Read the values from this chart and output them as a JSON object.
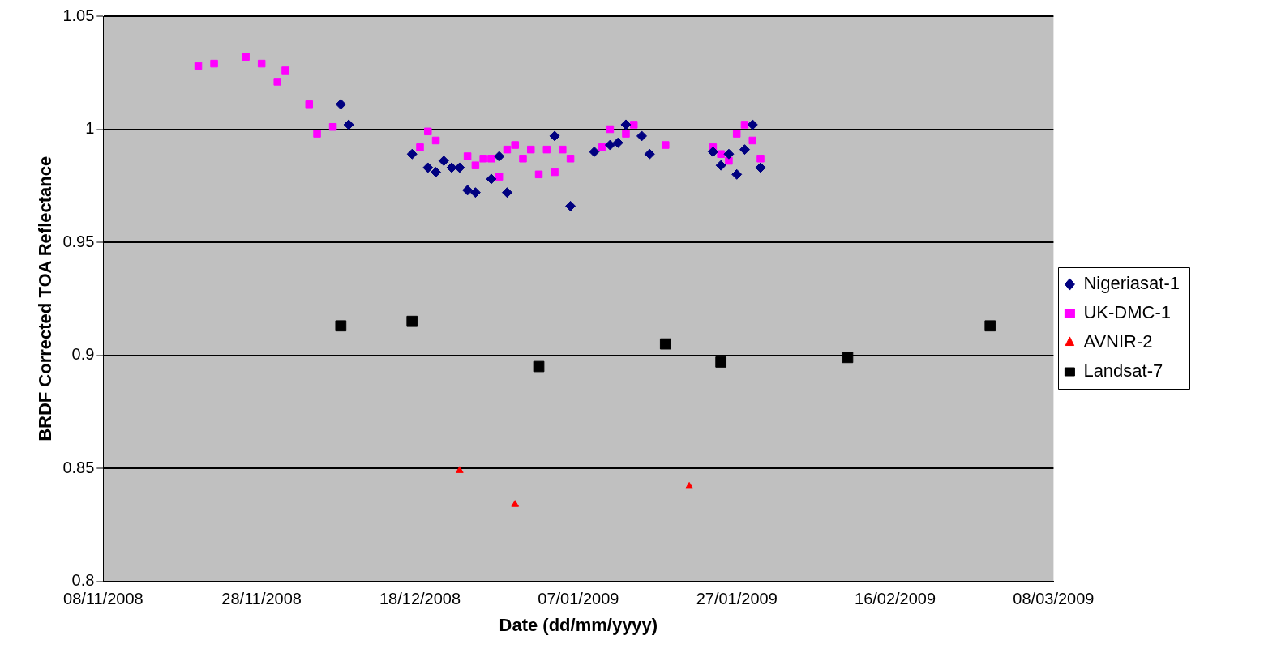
{
  "chart_data": {
    "type": "scatter",
    "xlabel": "Date (dd/mm/yyyy)",
    "ylabel": "BRDF Corrected TOA Reflectance",
    "xlim": [
      "2008-11-08",
      "2009-03-08"
    ],
    "xticks": [
      {
        "value": "2008-11-08",
        "label": "08/11/2008"
      },
      {
        "value": "2008-11-28",
        "label": "28/11/2008"
      },
      {
        "value": "2008-12-18",
        "label": "18/12/2008"
      },
      {
        "value": "2009-01-07",
        "label": "07/01/2009"
      },
      {
        "value": "2009-01-27",
        "label": "27/01/2009"
      },
      {
        "value": "2009-02-16",
        "label": "16/02/2009"
      },
      {
        "value": "2009-03-08",
        "label": "08/03/2009"
      }
    ],
    "ylim": [
      0.8,
      1.05
    ],
    "yticks": [
      0.8,
      0.85,
      0.9,
      0.95,
      1,
      1.05
    ],
    "grid": "y",
    "legend": "right",
    "series": [
      {
        "name": "Nigeriasat-1",
        "color": "#000080",
        "marker": "diamond",
        "x": [
          "2008-12-08",
          "2008-12-09",
          "2008-12-17",
          "2008-12-19",
          "2008-12-20",
          "2008-12-21",
          "2008-12-22",
          "2008-12-23",
          "2008-12-24",
          "2008-12-25",
          "2008-12-27",
          "2008-12-28",
          "2008-12-29",
          "2009-01-04",
          "2009-01-06",
          "2009-01-09",
          "2009-01-11",
          "2009-01-12",
          "2009-01-13",
          "2009-01-15",
          "2009-01-16",
          "2009-01-24",
          "2009-01-25",
          "2009-01-26",
          "2009-01-27",
          "2009-01-28",
          "2009-01-29",
          "2009-01-30"
        ],
        "values": [
          1.011,
          1.002,
          0.989,
          0.983,
          0.981,
          0.986,
          0.983,
          0.983,
          0.973,
          0.972,
          0.978,
          0.988,
          0.972,
          0.997,
          0.966,
          0.99,
          0.993,
          0.994,
          1.002,
          0.997,
          0.989,
          0.99,
          0.984,
          0.989,
          0.98,
          0.991,
          1.002,
          0.983
        ]
      },
      {
        "name": "UK-DMC-1",
        "color": "#ff00ff",
        "marker": "square",
        "x": [
          "2008-11-20",
          "2008-11-22",
          "2008-11-26",
          "2008-11-28",
          "2008-11-30",
          "2008-12-01",
          "2008-12-04",
          "2008-12-05",
          "2008-12-07",
          "2008-12-18",
          "2008-12-19",
          "2008-12-20",
          "2008-12-24",
          "2008-12-25",
          "2008-12-26",
          "2008-12-27",
          "2008-12-28",
          "2008-12-29",
          "2008-12-30",
          "2008-12-31",
          "2009-01-01",
          "2009-01-02",
          "2009-01-03",
          "2009-01-04",
          "2009-01-05",
          "2009-01-06",
          "2009-01-10",
          "2009-01-11",
          "2009-01-13",
          "2009-01-14",
          "2009-01-18",
          "2009-01-24",
          "2009-01-25",
          "2009-01-26",
          "2009-01-27",
          "2009-01-28",
          "2009-01-29",
          "2009-01-30"
        ],
        "values": [
          1.028,
          1.029,
          1.032,
          1.029,
          1.021,
          1.026,
          1.011,
          0.998,
          1.001,
          0.992,
          0.999,
          0.995,
          0.988,
          0.984,
          0.987,
          0.987,
          0.979,
          0.991,
          0.993,
          0.987,
          0.991,
          0.98,
          0.991,
          0.981,
          0.991,
          0.987,
          0.992,
          1.0,
          0.998,
          1.002,
          0.993,
          0.992,
          0.989,
          0.986,
          0.998,
          1.002,
          0.995,
          0.987
        ]
      },
      {
        "name": "AVNIR-2",
        "color": "#ff0000",
        "marker": "triangle",
        "x": [
          "2008-12-23",
          "2008-12-30",
          "2009-01-21"
        ],
        "values": [
          0.849,
          0.834,
          0.842
        ]
      },
      {
        "name": "Landsat-7",
        "color": "#000000",
        "marker": "square",
        "x": [
          "2008-12-08",
          "2008-12-17",
          "2009-01-02",
          "2009-01-18",
          "2009-01-25",
          "2009-02-10",
          "2009-02-28"
        ],
        "values": [
          0.913,
          0.915,
          0.895,
          0.905,
          0.897,
          0.899,
          0.913
        ]
      }
    ]
  }
}
